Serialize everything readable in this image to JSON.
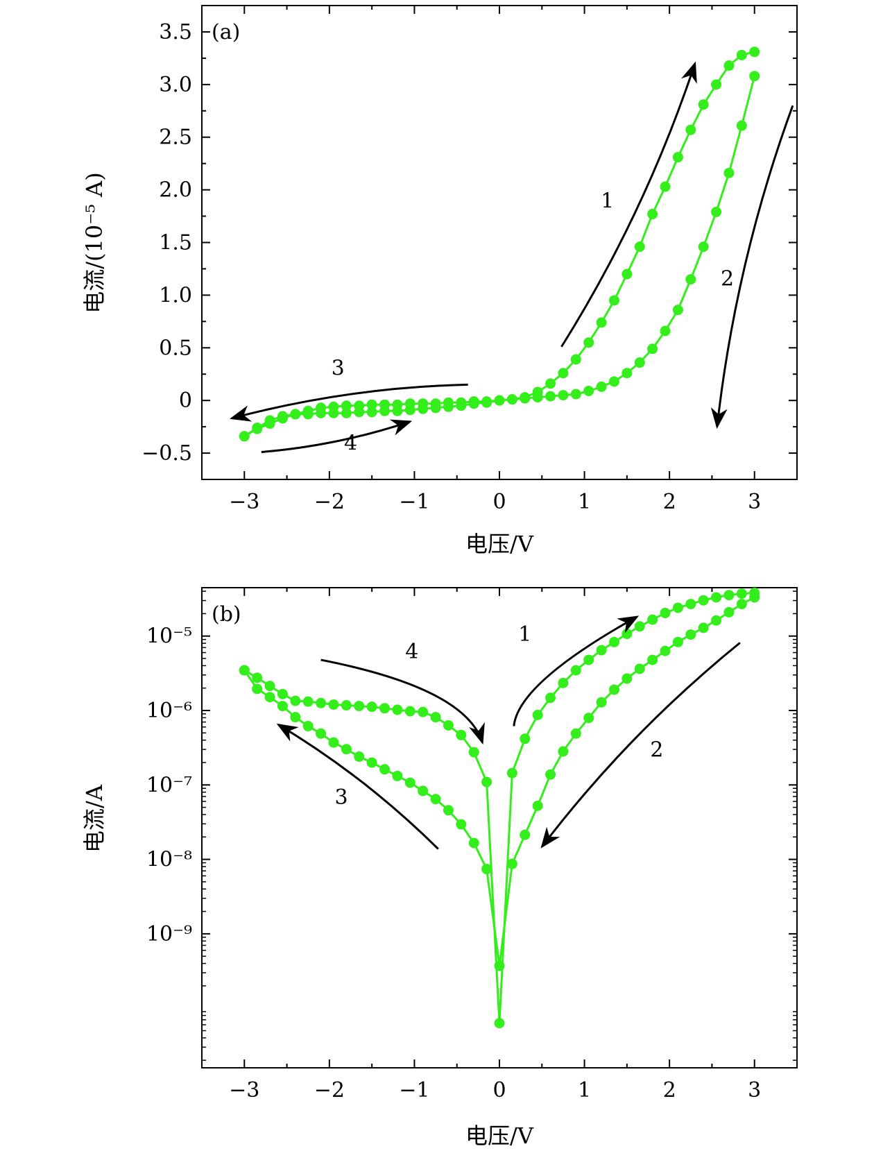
{
  "colors": {
    "series": "#33ee1a",
    "axis": "#000000"
  },
  "chart_data": [
    {
      "id": "a",
      "type": "line",
      "panel_label": "(a)",
      "xlabel": "电压/V",
      "ylabel": "电流/(10⁻⁵ A)",
      "xlim": [
        -3.5,
        3.5
      ],
      "ylim": [
        -0.75,
        3.75
      ],
      "yscale": "linear",
      "x_ticks": [
        -3,
        -2,
        -1,
        0,
        1,
        2,
        3
      ],
      "x_tick_labels": [
        "−3",
        "−2",
        "−1",
        "0",
        "1",
        "2",
        "3"
      ],
      "y_ticks": [
        -0.5,
        0,
        0.5,
        1.0,
        1.5,
        2.0,
        2.5,
        3.0,
        3.5
      ],
      "y_tick_labels": [
        "−0.5",
        "0",
        "0.5",
        "1.0",
        "1.5",
        "2.0",
        "2.5",
        "3.0",
        "3.5"
      ],
      "grid": false,
      "series": [
        {
          "x": [
            -3.0,
            -2.85,
            -2.7,
            -2.55,
            -2.4,
            -2.25,
            -2.1,
            -1.95,
            -1.8,
            -1.65,
            -1.5,
            -1.35,
            -1.2,
            -1.05,
            -0.9,
            -0.75,
            -0.6,
            -0.45,
            -0.3,
            -0.15,
            0.0,
            0.15,
            0.3,
            0.45,
            0.6,
            0.75,
            0.9,
            1.05,
            1.2,
            1.35,
            1.5,
            1.65,
            1.8,
            1.95,
            2.1,
            2.25,
            2.4,
            2.55,
            2.7,
            2.85,
            3.0
          ],
          "y": [
            -0.34,
            -0.27,
            -0.22,
            -0.17,
            -0.13,
            -0.1,
            -0.07,
            -0.06,
            -0.05,
            -0.05,
            -0.04,
            -0.04,
            -0.04,
            -0.03,
            -0.03,
            -0.03,
            -0.02,
            -0.02,
            -0.01,
            -0.01,
            0.0,
            0.01,
            0.03,
            0.08,
            0.16,
            0.26,
            0.39,
            0.55,
            0.74,
            0.95,
            1.2,
            1.46,
            1.77,
            2.03,
            2.31,
            2.57,
            2.81,
            3.0,
            3.18,
            3.28,
            3.31
          ]
        },
        {
          "x": [
            3.0,
            2.85,
            2.7,
            2.55,
            2.4,
            2.25,
            2.1,
            1.95,
            1.8,
            1.65,
            1.5,
            1.35,
            1.2,
            1.05,
            0.9,
            0.75,
            0.6,
            0.45,
            0.3,
            0.15,
            0.0,
            -0.15,
            -0.3,
            -0.45,
            -0.6,
            -0.75,
            -0.9,
            -1.05,
            -1.2,
            -1.35,
            -1.5,
            -1.65,
            -1.8,
            -1.95,
            -2.1,
            -2.25,
            -2.4,
            -2.55,
            -2.7,
            -2.85,
            -3.0
          ],
          "y": [
            3.08,
            2.61,
            2.16,
            1.79,
            1.46,
            1.15,
            0.86,
            0.66,
            0.49,
            0.36,
            0.26,
            0.18,
            0.13,
            0.09,
            0.06,
            0.05,
            0.04,
            0.03,
            0.02,
            0.01,
            0.0,
            -0.02,
            -0.03,
            -0.05,
            -0.06,
            -0.07,
            -0.08,
            -0.09,
            -0.1,
            -0.1,
            -0.11,
            -0.11,
            -0.12,
            -0.12,
            -0.12,
            -0.13,
            -0.13,
            -0.15,
            -0.19,
            -0.26,
            -0.34
          ]
        }
      ],
      "annotations": [
        {
          "text": "1",
          "x": 1.27,
          "y": 1.83
        },
        {
          "text": "2",
          "x": 2.68,
          "y": 1.09
        },
        {
          "text": "3",
          "x": -1.9,
          "y": 0.24
        },
        {
          "text": "4",
          "x": -1.75,
          "y": -0.47
        }
      ],
      "arrows": [
        {
          "label": "1",
          "from": [
            0.73,
            0.51
          ],
          "to": [
            2.3,
            3.2
          ]
        },
        {
          "label": "2",
          "from": [
            3.45,
            2.8
          ],
          "to": [
            2.56,
            -0.25
          ]
        },
        {
          "label": "3",
          "from": [
            -0.37,
            0.15
          ],
          "to": [
            -3.15,
            -0.17
          ]
        },
        {
          "label": "4",
          "from": [
            -2.8,
            -0.49
          ],
          "to": [
            -1.05,
            -0.2
          ]
        }
      ]
    },
    {
      "id": "b",
      "type": "line",
      "panel_label": "(b)",
      "xlabel": "电压/V",
      "ylabel": "电流/A",
      "xlim": [
        -3.5,
        3.5
      ],
      "ylim_log10": [
        -10.8,
        -4.35
      ],
      "yscale": "log",
      "x_ticks": [
        -3,
        -2,
        -1,
        0,
        1,
        2,
        3
      ],
      "x_tick_labels": [
        "−3",
        "−2",
        "−1",
        "0",
        "1",
        "2",
        "3"
      ],
      "y_ticks_log10": [
        -9,
        -8,
        -7,
        -6,
        -5
      ],
      "y_tick_labels": [
        "10⁻⁹",
        "10⁻⁸",
        "10⁻⁷",
        "10⁻⁶",
        "10⁻⁵"
      ],
      "grid": false,
      "series": [
        {
          "x": [
            -3.0,
            -2.85,
            -2.7,
            -2.55,
            -2.4,
            -2.25,
            -2.1,
            -1.95,
            -1.8,
            -1.65,
            -1.5,
            -1.35,
            -1.2,
            -1.05,
            -0.9,
            -0.75,
            -0.6,
            -0.45,
            -0.3,
            -0.15,
            0.0,
            0.15,
            0.3,
            0.45,
            0.6,
            0.75,
            0.9,
            1.05,
            1.2,
            1.35,
            1.5,
            1.65,
            1.8,
            1.95,
            2.1,
            2.25,
            2.4,
            2.55,
            2.7,
            2.85,
            3.0
          ],
          "log10_y": [
            -5.46,
            -5.56,
            -5.67,
            -5.78,
            -5.87,
            -5.88,
            -5.9,
            -5.92,
            -5.93,
            -5.94,
            -5.95,
            -5.97,
            -5.99,
            -6.01,
            -6.02,
            -6.09,
            -6.2,
            -6.33,
            -6.56,
            -6.96,
            -10.2,
            -6.84,
            -6.38,
            -6.06,
            -5.83,
            -5.63,
            -5.46,
            -5.32,
            -5.19,
            -5.08,
            -4.97,
            -4.87,
            -4.78,
            -4.69,
            -4.62,
            -4.57,
            -4.52,
            -4.48,
            -4.45,
            -4.43,
            -4.42
          ]
        },
        {
          "x": [
            3.0,
            2.85,
            2.7,
            2.55,
            2.4,
            2.25,
            2.1,
            1.95,
            1.8,
            1.65,
            1.5,
            1.35,
            1.2,
            1.05,
            0.9,
            0.75,
            0.6,
            0.45,
            0.3,
            0.15,
            0.0,
            -0.15,
            -0.3,
            -0.45,
            -0.6,
            -0.75,
            -0.9,
            -1.05,
            -1.2,
            -1.35,
            -1.5,
            -1.65,
            -1.8,
            -1.95,
            -2.1,
            -2.25,
            -2.4,
            -2.55,
            -2.7,
            -2.85,
            -3.0
          ],
          "log10_y": [
            -4.48,
            -4.57,
            -4.68,
            -4.79,
            -4.89,
            -4.98,
            -5.08,
            -5.2,
            -5.32,
            -5.44,
            -5.57,
            -5.72,
            -5.89,
            -6.1,
            -6.31,
            -6.55,
            -6.86,
            -7.28,
            -7.67,
            -8.06,
            -9.43,
            -8.13,
            -7.78,
            -7.53,
            -7.34,
            -7.19,
            -7.08,
            -6.97,
            -6.88,
            -6.79,
            -6.7,
            -6.62,
            -6.52,
            -6.43,
            -6.31,
            -6.21,
            -6.09,
            -5.94,
            -5.82,
            -5.71,
            -5.46
          ]
        }
      ],
      "annotations": [
        {
          "text": "1",
          "x": 0.3,
          "y_log10": -5.07
        },
        {
          "text": "2",
          "x": 1.85,
          "y_log10": -6.62
        },
        {
          "text": "3",
          "x": -1.86,
          "y_log10": -7.26
        },
        {
          "text": "4",
          "x": -1.03,
          "y_log10": -5.3
        }
      ],
      "arrows": [
        {
          "label": "1",
          "from": [
            0.17,
            -6.21
          ],
          "to": [
            1.62,
            -4.74
          ],
          "via": [
            0.22,
            -5.63
          ]
        },
        {
          "label": "2",
          "from": [
            2.83,
            -5.09
          ],
          "to": [
            0.5,
            -7.83
          ]
        },
        {
          "label": "3",
          "from": [
            -0.72,
            -7.86
          ],
          "to": [
            -2.6,
            -6.19
          ]
        },
        {
          "label": "4",
          "from": [
            -2.1,
            -5.32
          ],
          "to": [
            -0.2,
            -6.43
          ],
          "via": [
            -0.4,
            -5.7
          ]
        }
      ]
    }
  ]
}
